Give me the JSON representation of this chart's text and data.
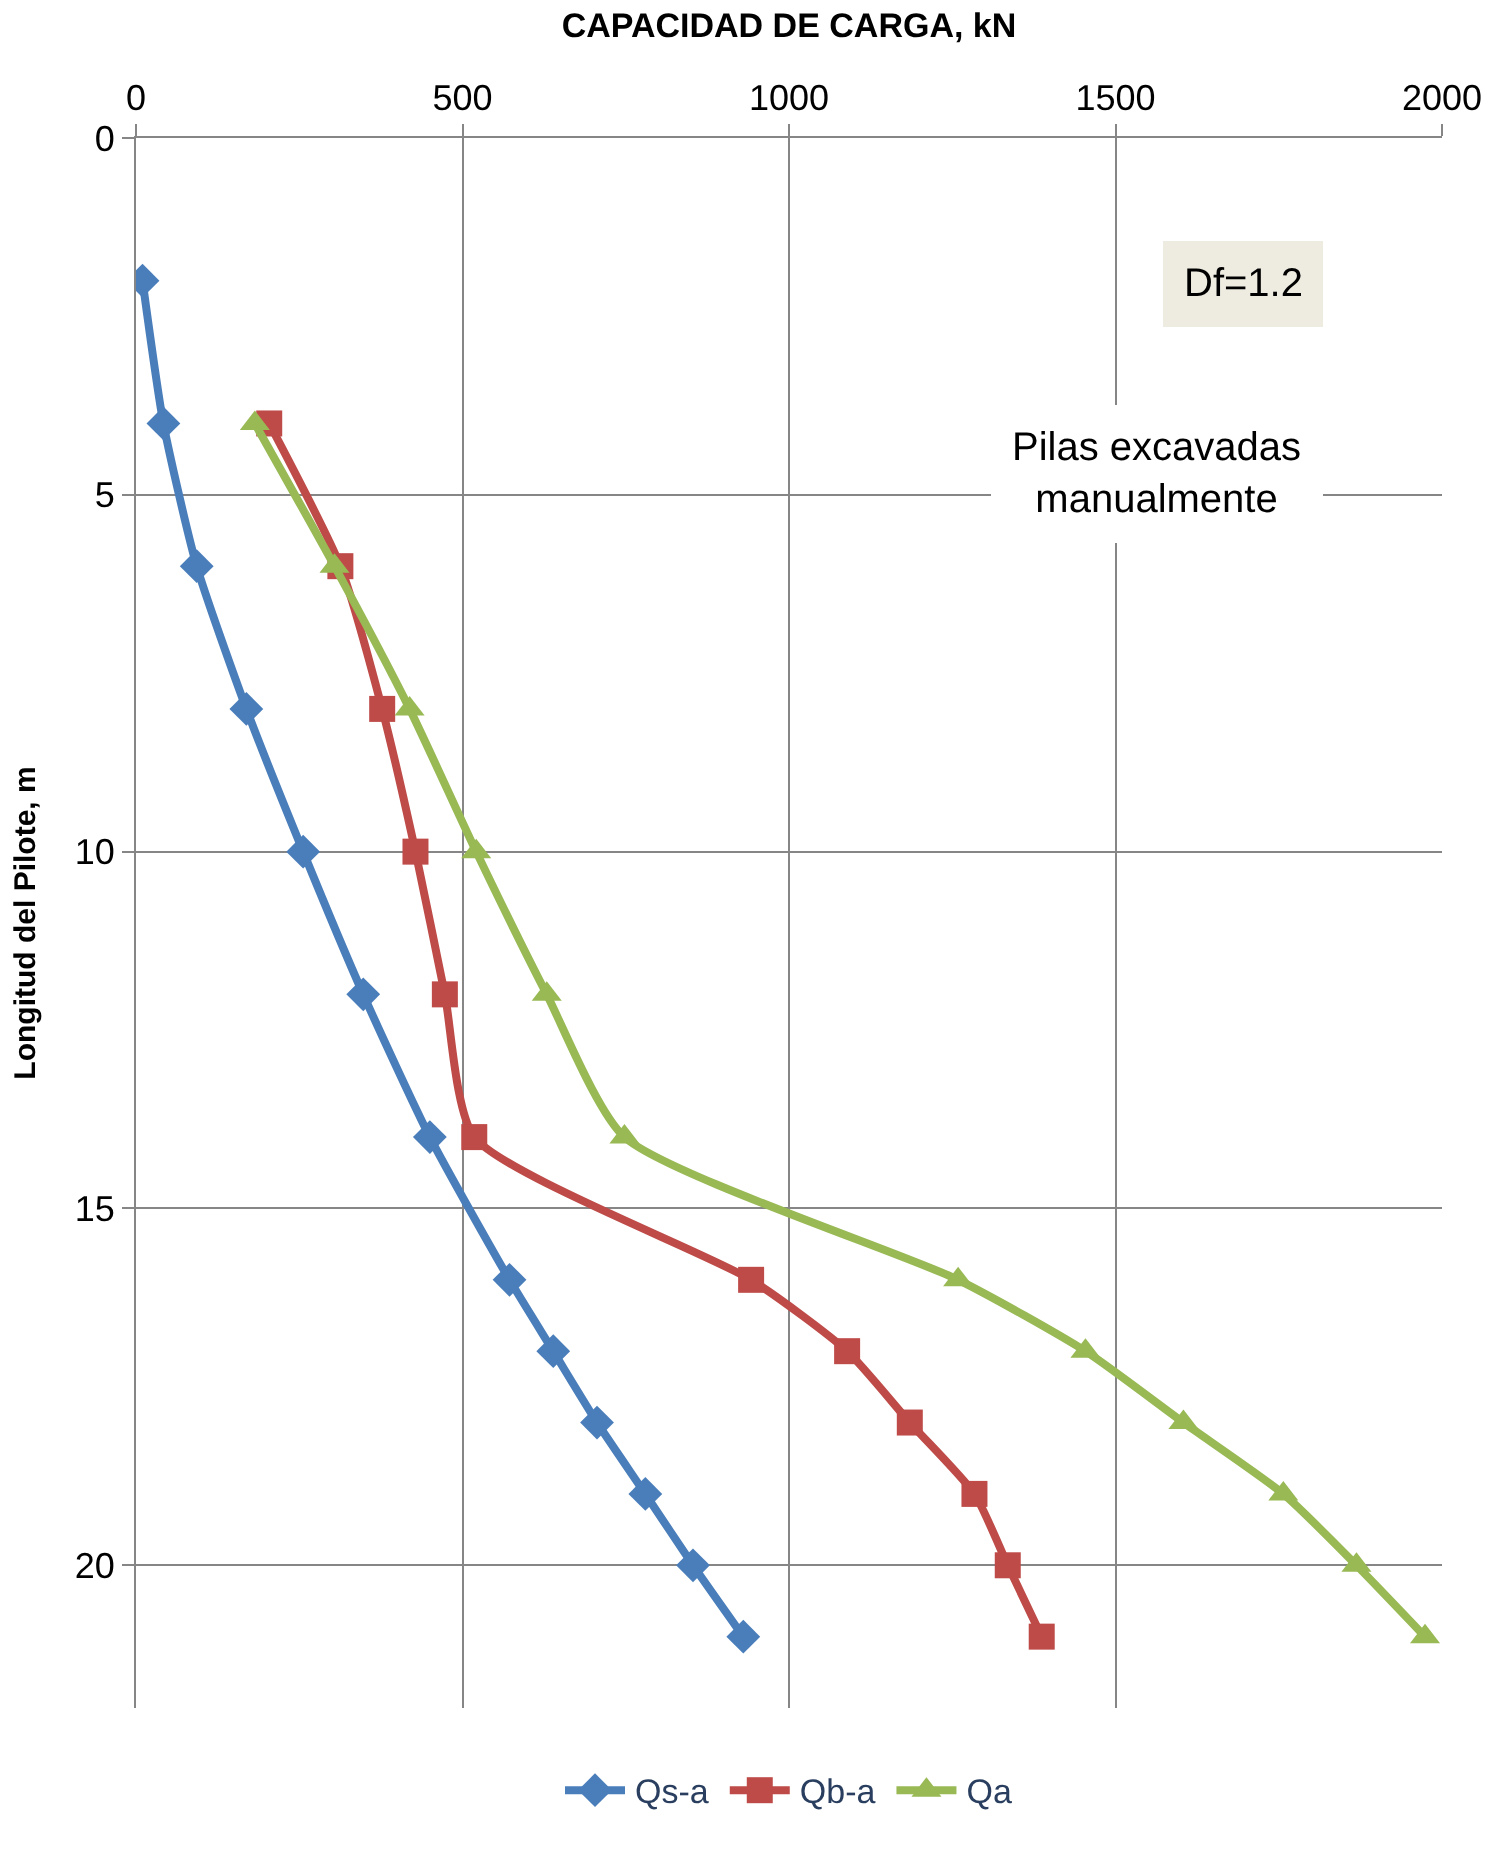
{
  "chart_data": {
    "type": "line",
    "xlabel": "CAPACIDAD DE CARGA, kN",
    "ylabel": "Longitud del Pilote, m",
    "xlim": [
      0,
      2000
    ],
    "xticks": [
      0,
      500,
      1000,
      1500,
      2000
    ],
    "ylim": [
      22,
      0
    ],
    "yticks": [
      0,
      5,
      10,
      15,
      20
    ],
    "grid": true,
    "legend": "bottom",
    "line_style": "solid",
    "annotations": [
      "Df=1.2",
      "Pilas excavadas\nmanualmente"
    ],
    "series": [
      {
        "name": "Qs-a",
        "color": "#4a7ebb",
        "marker": "diamond",
        "x": [
          10,
          42,
          93,
          169,
          256,
          348,
          450,
          572,
          639,
          706,
          780,
          853,
          930
        ],
        "values": [
          2,
          4,
          6,
          8,
          10,
          12,
          14,
          16,
          17,
          18,
          19,
          20,
          21
        ]
      },
      {
        "name": "Qb-a",
        "color": "#be4b48",
        "marker": "square",
        "x": [
          204,
          313,
          377,
          428,
          473,
          518,
          942,
          1089,
          1185,
          1284,
          1335,
          1387
        ],
        "values": [
          4,
          6,
          8,
          10,
          12,
          14,
          16,
          17,
          18,
          19,
          20,
          21
        ]
      },
      {
        "name": "Qa",
        "color": "#98b954",
        "marker": "triangle",
        "x": [
          182,
          304,
          419,
          521,
          629,
          748,
          1259,
          1454,
          1604,
          1757,
          1869,
          1974
        ],
        "values": [
          4,
          6,
          8,
          10,
          12,
          14,
          16,
          17,
          18,
          19,
          20,
          21
        ]
      }
    ]
  }
}
